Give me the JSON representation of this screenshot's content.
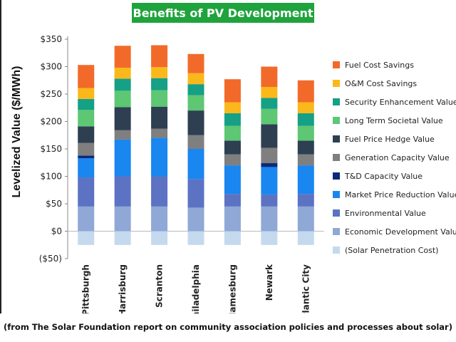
{
  "title": "Benefits of PV Development",
  "caption": "(from The Solar Foundation report on community association  policies and processes about solar)",
  "chart_data": {
    "type": "bar",
    "stacked": true,
    "ylabel": "Levelized Value ($/MWh)",
    "ylim": [
      -50,
      350
    ],
    "ytick_labels": [
      "($50)",
      "$0",
      "$50",
      "$100",
      "$150",
      "$200",
      "$250",
      "$300",
      "$350"
    ],
    "yticks": [
      -50,
      0,
      50,
      100,
      150,
      200,
      250,
      300,
      350
    ],
    "grid": false,
    "legend_position": "right",
    "categories": [
      "Pittsburgh",
      "Harrisburg",
      "Scranton",
      "Philadelphia",
      "Jamesburg",
      "Newark",
      "Atlantic City"
    ],
    "series": [
      {
        "name": "(Solar Penetration Cost)",
        "color": "#c5d9ee",
        "values": [
          -25,
          -25,
          -25,
          -25,
          -25,
          -25,
          -25
        ]
      },
      {
        "name": "Economic Development Value",
        "color": "#8fa8d6",
        "values": [
          45,
          45,
          45,
          43,
          45,
          45,
          45
        ]
      },
      {
        "name": "Environmental Value",
        "color": "#5b73c2",
        "values": [
          53,
          55,
          55,
          52,
          23,
          22,
          23
        ]
      },
      {
        "name": "Market Price Reduction Value",
        "color": "#1a86f0",
        "values": [
          35,
          67,
          70,
          55,
          52,
          50,
          52
        ]
      },
      {
        "name": "T&D Capacity Value",
        "color": "#0b2a7a",
        "values": [
          5,
          0,
          0,
          0,
          0,
          7,
          0
        ]
      },
      {
        "name": "Generation Capacity Value",
        "color": "#7f7f7f",
        "values": [
          23,
          17,
          17,
          25,
          20,
          28,
          20
        ]
      },
      {
        "name": "Fuel Price Hedge Value",
        "color": "#2e3f52",
        "values": [
          30,
          42,
          40,
          45,
          25,
          43,
          25
        ]
      },
      {
        "name": "Long Term Societal Value",
        "color": "#5dc774",
        "values": [
          30,
          30,
          30,
          28,
          27,
          28,
          27
        ]
      },
      {
        "name": "Security Enhancement Value",
        "color": "#16a085",
        "values": [
          20,
          22,
          22,
          20,
          23,
          20,
          23
        ]
      },
      {
        "name": "O&M Cost Savings",
        "color": "#fbb81b",
        "values": [
          20,
          20,
          20,
          20,
          20,
          20,
          20
        ]
      },
      {
        "name": "Fuel Cost Savings",
        "color": "#f26a2a",
        "values": [
          42,
          40,
          40,
          35,
          42,
          37,
          40
        ]
      }
    ]
  }
}
